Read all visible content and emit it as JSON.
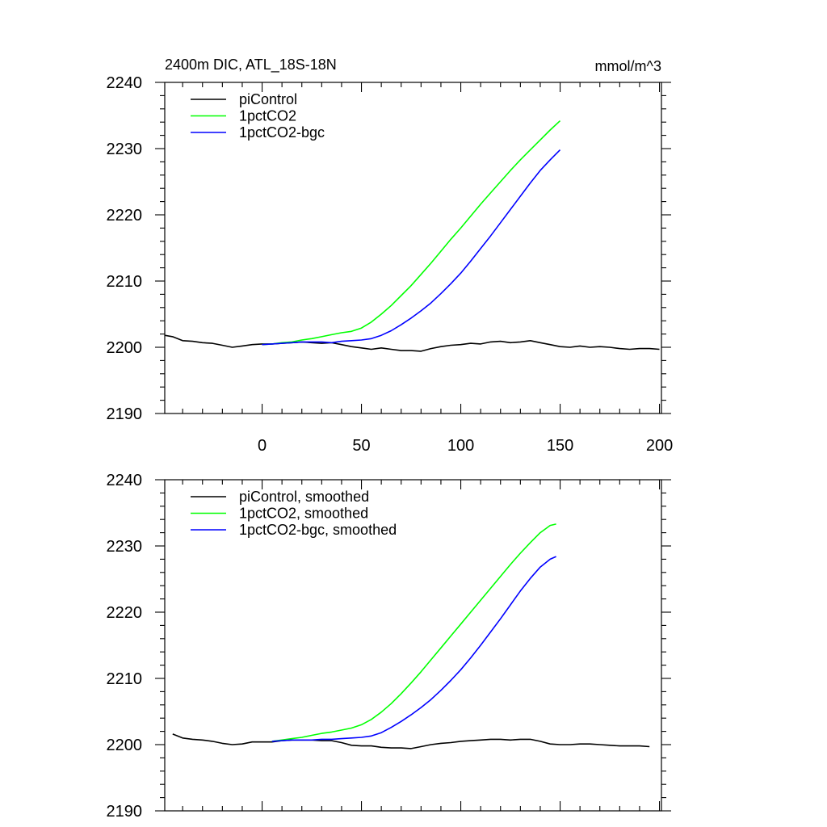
{
  "chart_data": [
    {
      "type": "line",
      "title_left": "2400m DIC, ATL_18S-18N",
      "title_right": "mmol/m^3",
      "xlim": [
        -49,
        201
      ],
      "ylim": [
        2190,
        2240
      ],
      "xticks": [
        0,
        50,
        100,
        150,
        200
      ],
      "yticks": [
        2190,
        2200,
        2210,
        2220,
        2230,
        2240
      ],
      "show_x_tick_labels": true,
      "legend_position": "top-left",
      "series": [
        {
          "name": "piControl",
          "color": "#000000",
          "x": [
            -49,
            -45,
            -40,
            -35,
            -30,
            -25,
            -20,
            -15,
            -10,
            -5,
            0,
            5,
            10,
            15,
            20,
            25,
            30,
            35,
            40,
            45,
            50,
            55,
            60,
            65,
            70,
            75,
            80,
            85,
            90,
            95,
            100,
            105,
            110,
            115,
            120,
            125,
            130,
            135,
            140,
            145,
            150,
            155,
            160,
            165,
            170,
            175,
            180,
            185,
            190,
            195,
            200
          ],
          "y": [
            2201.8,
            2201.6,
            2201.0,
            2200.9,
            2200.7,
            2200.6,
            2200.3,
            2200.0,
            2200.2,
            2200.4,
            2200.5,
            2200.5,
            2200.6,
            2200.7,
            2200.8,
            2200.7,
            2200.6,
            2200.7,
            2200.4,
            2200.1,
            2199.9,
            2199.7,
            2199.9,
            2199.7,
            2199.5,
            2199.5,
            2199.4,
            2199.8,
            2200.1,
            2200.3,
            2200.4,
            2200.6,
            2200.5,
            2200.8,
            2200.9,
            2200.7,
            2200.8,
            2201.0,
            2200.7,
            2200.4,
            2200.1,
            2200.0,
            2200.2,
            2200.0,
            2200.1,
            2200.0,
            2199.8,
            2199.7,
            2199.8,
            2199.8,
            2199.7
          ]
        },
        {
          "name": "1pctCO2",
          "color": "#00ff00",
          "x": [
            0,
            5,
            10,
            15,
            20,
            25,
            30,
            35,
            40,
            45,
            50,
            55,
            60,
            65,
            70,
            75,
            80,
            85,
            90,
            95,
            100,
            105,
            110,
            115,
            120,
            125,
            130,
            135,
            140,
            145,
            150
          ],
          "y": [
            2200.4,
            2200.5,
            2200.7,
            2200.8,
            2201.1,
            2201.3,
            2201.6,
            2201.9,
            2202.2,
            2202.4,
            2202.9,
            2203.8,
            2205.0,
            2206.3,
            2207.8,
            2209.3,
            2211.0,
            2212.7,
            2214.5,
            2216.3,
            2218.0,
            2219.8,
            2221.6,
            2223.3,
            2225.0,
            2226.7,
            2228.3,
            2229.8,
            2231.3,
            2232.8,
            2234.2
          ]
        },
        {
          "name": "1pctCO2-bgc",
          "color": "#0000ff",
          "x": [
            0,
            5,
            10,
            15,
            20,
            25,
            30,
            35,
            40,
            45,
            50,
            55,
            60,
            65,
            70,
            75,
            80,
            85,
            90,
            95,
            100,
            105,
            110,
            115,
            120,
            125,
            130,
            135,
            140,
            145,
            150
          ],
          "y": [
            2200.4,
            2200.5,
            2200.6,
            2200.7,
            2200.8,
            2200.8,
            2200.8,
            2200.7,
            2200.9,
            2201.0,
            2201.1,
            2201.3,
            2201.8,
            2202.5,
            2203.4,
            2204.4,
            2205.5,
            2206.7,
            2208.1,
            2209.6,
            2211.2,
            2213.0,
            2214.9,
            2216.8,
            2218.8,
            2220.8,
            2222.8,
            2224.8,
            2226.7,
            2228.3,
            2229.8
          ]
        }
      ]
    },
    {
      "type": "line",
      "title_left": "",
      "title_right": "",
      "xlim": [
        -49,
        201
      ],
      "ylim": [
        2190,
        2240
      ],
      "xticks": [
        0,
        50,
        100,
        150,
        200
      ],
      "yticks": [
        2190,
        2200,
        2210,
        2220,
        2230,
        2240
      ],
      "show_x_tick_labels": false,
      "legend_position": "top-left",
      "series": [
        {
          "name": "piControl, smoothed",
          "color": "#000000",
          "x": [
            -45,
            -40,
            -35,
            -30,
            -25,
            -20,
            -15,
            -10,
            -5,
            0,
            5,
            10,
            15,
            20,
            25,
            30,
            35,
            40,
            45,
            50,
            55,
            60,
            65,
            70,
            75,
            80,
            85,
            90,
            95,
            100,
            105,
            110,
            115,
            120,
            125,
            130,
            135,
            140,
            145,
            150,
            155,
            160,
            165,
            170,
            175,
            180,
            185,
            190,
            195
          ],
          "y": [
            2201.6,
            2201.0,
            2200.8,
            2200.7,
            2200.5,
            2200.2,
            2200.0,
            2200.1,
            2200.4,
            2200.4,
            2200.4,
            2200.6,
            2200.7,
            2200.7,
            2200.7,
            2200.6,
            2200.6,
            2200.3,
            2199.9,
            2199.8,
            2199.8,
            2199.6,
            2199.5,
            2199.5,
            2199.4,
            2199.7,
            2200.0,
            2200.2,
            2200.3,
            2200.5,
            2200.6,
            2200.7,
            2200.8,
            2200.8,
            2200.7,
            2200.8,
            2200.8,
            2200.5,
            2200.1,
            2200.0,
            2200.0,
            2200.1,
            2200.1,
            2200.0,
            2199.9,
            2199.8,
            2199.8,
            2199.8,
            2199.7
          ]
        },
        {
          "name": "1pctCO2, smoothed",
          "color": "#00ff00",
          "x": [
            5,
            10,
            15,
            20,
            25,
            30,
            35,
            40,
            45,
            50,
            55,
            60,
            65,
            70,
            75,
            80,
            85,
            90,
            95,
            100,
            105,
            110,
            115,
            120,
            125,
            130,
            135,
            140,
            145,
            148
          ],
          "y": [
            2200.5,
            2200.7,
            2200.9,
            2201.1,
            2201.4,
            2201.7,
            2201.9,
            2202.2,
            2202.5,
            2203.0,
            2203.8,
            2204.9,
            2206.2,
            2207.7,
            2209.3,
            2211.0,
            2212.8,
            2214.6,
            2216.4,
            2218.2,
            2220.0,
            2221.8,
            2223.6,
            2225.4,
            2227.2,
            2228.9,
            2230.5,
            2232.0,
            2233.1,
            2233.3
          ]
        },
        {
          "name": "1pctCO2-bgc, smoothed",
          "color": "#0000ff",
          "x": [
            5,
            10,
            15,
            20,
            25,
            30,
            35,
            40,
            45,
            50,
            55,
            60,
            65,
            70,
            75,
            80,
            85,
            90,
            95,
            100,
            105,
            110,
            115,
            120,
            125,
            130,
            135,
            140,
            145,
            148
          ],
          "y": [
            2200.5,
            2200.6,
            2200.7,
            2200.7,
            2200.7,
            2200.8,
            2200.8,
            2200.9,
            2201.0,
            2201.1,
            2201.3,
            2201.8,
            2202.6,
            2203.5,
            2204.5,
            2205.6,
            2206.8,
            2208.2,
            2209.7,
            2211.3,
            2213.1,
            2215.0,
            2217.0,
            2219.0,
            2221.1,
            2223.2,
            2225.1,
            2226.8,
            2228.0,
            2228.4
          ]
        }
      ]
    }
  ]
}
